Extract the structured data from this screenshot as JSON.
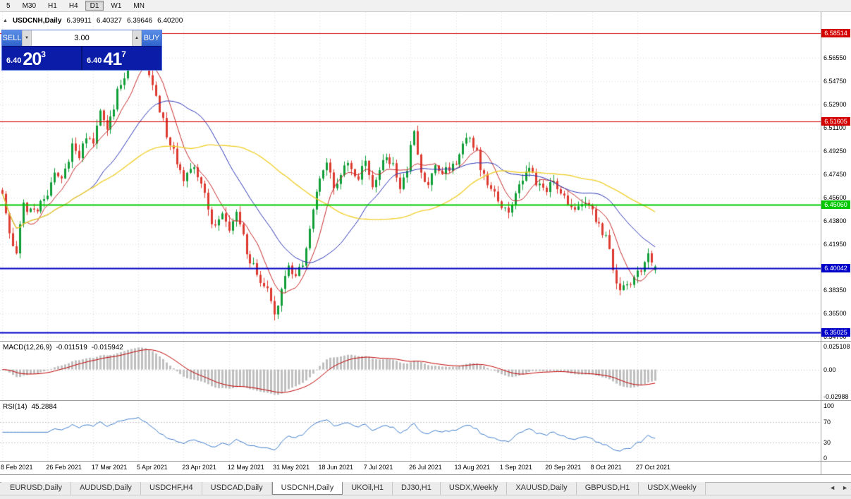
{
  "toolbar": {
    "timeframes": [
      {
        "label": "5",
        "active": false
      },
      {
        "label": "M30",
        "active": false
      },
      {
        "label": "H1",
        "active": false
      },
      {
        "label": "H4",
        "active": false
      },
      {
        "label": "D1",
        "active": true
      },
      {
        "label": "W1",
        "active": false
      },
      {
        "label": "MN",
        "active": false
      }
    ]
  },
  "chart": {
    "collapse_marker": "▲",
    "symbol": "USDCNH,Daily",
    "ohlc": {
      "open": "6.39911",
      "high": "6.40327",
      "low": "6.39646",
      "close": "6.40200"
    }
  },
  "trade_panel": {
    "sell_label": "SELL",
    "buy_label": "BUY",
    "volume": "3.00",
    "spin_down": "▼",
    "spin_up": "▲",
    "sell_price": {
      "prefix": "6.40",
      "main": "20",
      "sup": "3"
    },
    "buy_price": {
      "prefix": "6.40",
      "main": "41",
      "sup": "7"
    }
  },
  "price_axis": {
    "labels": [
      "6.56550",
      "6.54750",
      "6.52900",
      "6.51100",
      "6.49250",
      "6.47450",
      "6.45600",
      "6.43800",
      "6.41950",
      "6.40150",
      "6.38350",
      "6.36500",
      "6.34700"
    ]
  },
  "levels": [
    {
      "price": 6.58514,
      "label": "6.58514",
      "color": "#d40000",
      "width": 1
    },
    {
      "price": 6.51605,
      "label": "6.51605",
      "color": "#d40000",
      "width": 1
    },
    {
      "price": 6.4506,
      "label": "6.45060",
      "color": "#00c800",
      "width": 2
    },
    {
      "price": 6.40042,
      "label": "6.40042",
      "color": "#0000c8",
      "width": 2
    },
    {
      "price": 6.35025,
      "label": "6.35025",
      "color": "#0000c8",
      "width": 2
    }
  ],
  "indicators": {
    "macd": {
      "label": "MACD(12,26,9)",
      "value1": "-0.011519",
      "value2": "-0.015942",
      "axis": [
        {
          "label": "0.025108",
          "value": 0.025108
        },
        {
          "label": "0.00",
          "value": 0
        },
        {
          "label": "-0.02988",
          "value": -0.029884
        }
      ],
      "range": [
        -0.0335,
        0.0305
      ]
    },
    "rsi": {
      "label": "RSI(14)",
      "value": "45.2884",
      "axis": [
        {
          "label": "100",
          "value": 100
        },
        {
          "label": "70",
          "value": 70
        },
        {
          "label": "30",
          "value": 30
        },
        {
          "label": "0",
          "value": 0
        }
      ],
      "levels": [
        70,
        30
      ],
      "range": [
        -5,
        110
      ]
    }
  },
  "date_axis": [
    "8 Feb 2021",
    "26 Feb 2021",
    "17 Mar 2021",
    "5 Apr 2021",
    "23 Apr 2021",
    "12 May 2021",
    "31 May 2021",
    "18 Jun 2021",
    "7 Jul 2021",
    "26 Jul 2021",
    "13 Aug 2021",
    "1 Sep 2021",
    "20 Sep 2021",
    "8 Oct 2021",
    "27 Oct 2021"
  ],
  "tabs": {
    "scroll_left": "◄",
    "scroll_right": "►",
    "items": [
      {
        "label": "EURUSD,Daily",
        "active": false
      },
      {
        "label": "AUDUSD,Daily",
        "active": false
      },
      {
        "label": "USDCHF,H4",
        "active": false
      },
      {
        "label": "USDCAD,Daily",
        "active": false
      },
      {
        "label": "USDCNH,Daily",
        "active": true
      },
      {
        "label": "UKOil,H1",
        "active": false
      },
      {
        "label": "DJ30,H1",
        "active": false
      },
      {
        "label": "USDX,Weekly",
        "active": false
      },
      {
        "label": "XAUUSD,Daily",
        "active": false
      },
      {
        "label": "GBPUSD,H1",
        "active": false
      },
      {
        "label": "USDX,Weekly",
        "active": false
      }
    ]
  },
  "colors": {
    "bull": "#109e38",
    "bear": "#dd3a30",
    "grid": "#dadada",
    "macd_hist": "#bfbfbf",
    "macd_signal": "#c00000",
    "rsi_line": "#3f7cc9",
    "level_red": "#d40000",
    "level_green": "#00c800",
    "level_blue": "#0000c8"
  },
  "chart_data": {
    "type": "candlestick",
    "symbol": "USDCNH",
    "timeframe": "Daily",
    "last_candle": {
      "open": 6.39911,
      "high": 6.40327,
      "low": 6.39646,
      "close": 6.402
    },
    "price_range": [
      6.34354,
      6.6018
    ],
    "candle_count": 188,
    "candles_per_tick": 13,
    "candle_spacing_px": 4.95,
    "noise": {
      "seed": 9,
      "body": 0.008,
      "wick": 0.005
    },
    "moving_averages": [
      {
        "name": "fast",
        "period": 8,
        "color": "#c62828",
        "width": 1
      },
      {
        "name": "mid",
        "period": 25,
        "color": "#2b35b5",
        "width": 1
      },
      {
        "name": "slow",
        "period": 55,
        "color": "#f0d030",
        "width": 1.4
      }
    ],
    "price_path_anchors": [
      [
        0,
        6.458
      ],
      [
        2,
        6.427
      ],
      [
        4,
        6.414
      ],
      [
        6,
        6.452
      ],
      [
        8,
        6.444
      ],
      [
        11,
        6.45
      ],
      [
        13,
        6.458
      ],
      [
        15,
        6.477
      ],
      [
        17,
        6.468
      ],
      [
        20,
        6.497
      ],
      [
        22,
        6.487
      ],
      [
        24,
        6.504
      ],
      [
        26,
        6.499
      ],
      [
        28,
        6.528
      ],
      [
        30,
        6.506
      ],
      [
        33,
        6.54
      ],
      [
        36,
        6.555
      ],
      [
        39,
        6.567
      ],
      [
        41,
        6.559
      ],
      [
        44,
        6.535
      ],
      [
        47,
        6.506
      ],
      [
        50,
        6.486
      ],
      [
        52,
        6.473
      ],
      [
        55,
        6.478
      ],
      [
        58,
        6.462
      ],
      [
        60,
        6.433
      ],
      [
        63,
        6.444
      ],
      [
        65,
        6.432
      ],
      [
        67,
        6.445
      ],
      [
        70,
        6.414
      ],
      [
        73,
        6.395
      ],
      [
        76,
        6.381
      ],
      [
        78,
        6.361
      ],
      [
        80,
        6.383
      ],
      [
        82,
        6.402
      ],
      [
        84,
        6.393
      ],
      [
        86,
        6.403
      ],
      [
        88,
        6.432
      ],
      [
        91,
        6.47
      ],
      [
        93,
        6.481
      ],
      [
        95,
        6.463
      ],
      [
        97,
        6.473
      ],
      [
        99,
        6.486
      ],
      [
        101,
        6.47
      ],
      [
        104,
        6.481
      ],
      [
        106,
        6.464
      ],
      [
        108,
        6.479
      ],
      [
        110,
        6.489
      ],
      [
        112,
        6.481
      ],
      [
        114,
        6.464
      ],
      [
        116,
        6.478
      ],
      [
        118,
        6.511
      ],
      [
        120,
        6.476
      ],
      [
        122,
        6.464
      ],
      [
        124,
        6.481
      ],
      [
        126,
        6.472
      ],
      [
        128,
        6.48
      ],
      [
        130,
        6.481
      ],
      [
        132,
        6.496
      ],
      [
        134,
        6.502
      ],
      [
        136,
        6.491
      ],
      [
        138,
        6.472
      ],
      [
        140,
        6.462
      ],
      [
        143,
        6.45
      ],
      [
        145,
        6.443
      ],
      [
        147,
        6.461
      ],
      [
        149,
        6.471
      ],
      [
        151,
        6.48
      ],
      [
        153,
        6.464
      ],
      [
        156,
        6.462
      ],
      [
        158,
        6.471
      ],
      [
        160,
        6.462
      ],
      [
        162,
        6.452
      ],
      [
        164,
        6.444
      ],
      [
        166,
        6.452
      ],
      [
        169,
        6.443
      ],
      [
        171,
        6.433
      ],
      [
        173,
        6.423
      ],
      [
        175,
        6.401
      ],
      [
        177,
        6.381
      ],
      [
        179,
        6.386
      ],
      [
        181,
        6.391
      ],
      [
        183,
        6.4
      ],
      [
        185,
        6.411
      ],
      [
        187,
        6.402
      ]
    ]
  }
}
